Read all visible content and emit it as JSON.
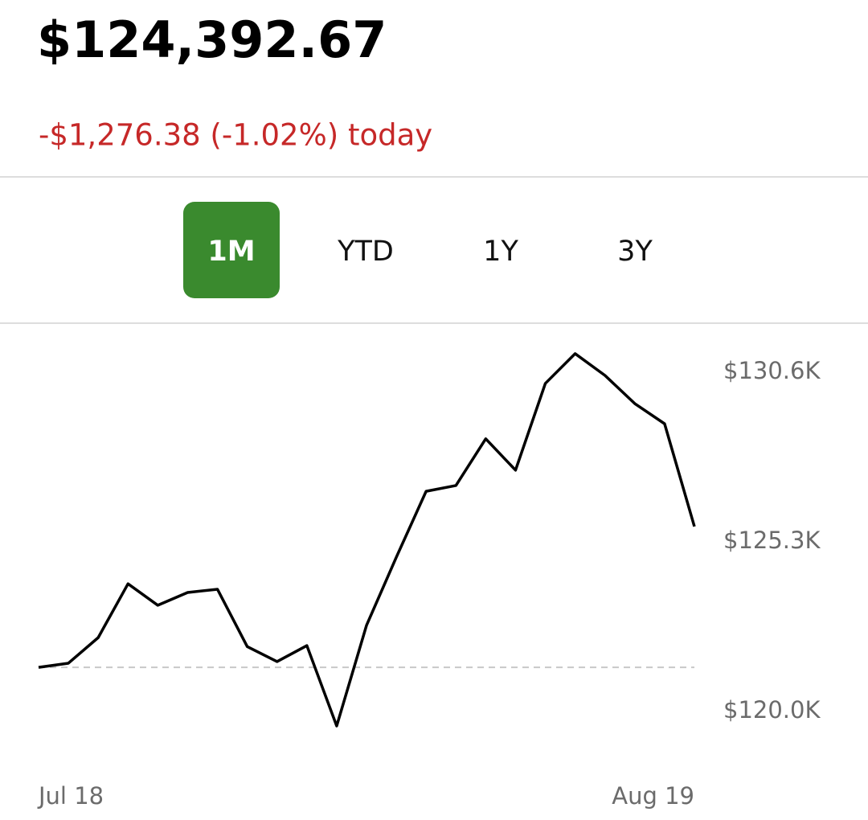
{
  "header": {
    "value": "$124,392.67",
    "change": "-$1,276.38 (-1.02%) today"
  },
  "tabs": {
    "items": [
      "1M",
      "YTD",
      "1Y",
      "3Y"
    ],
    "selected": 0,
    "selected_color": "#3a8a2e"
  },
  "chart_data": {
    "type": "line",
    "color": "#000000",
    "categories": [
      "Jul 18",
      null,
      null,
      null,
      null,
      null,
      null,
      null,
      null,
      null,
      null,
      null,
      null,
      null,
      null,
      null,
      null,
      null,
      null,
      null,
      null,
      null,
      "Aug 19"
    ],
    "values": [
      121380,
      121510,
      122310,
      123990,
      123320,
      123720,
      123820,
      122030,
      121560,
      122060,
      119550,
      122690,
      124820,
      126880,
      127060,
      128520,
      127540,
      130250,
      131180,
      130500,
      129620,
      128990,
      125780
    ],
    "baseline": 121380,
    "ylim": [
      118370,
      131680
    ],
    "yticks": [
      {
        "value": 130600,
        "label": "$130.6K"
      },
      {
        "value": 125300,
        "label": "$125.3K"
      },
      {
        "value": 120000,
        "label": "$120.0K"
      }
    ]
  }
}
